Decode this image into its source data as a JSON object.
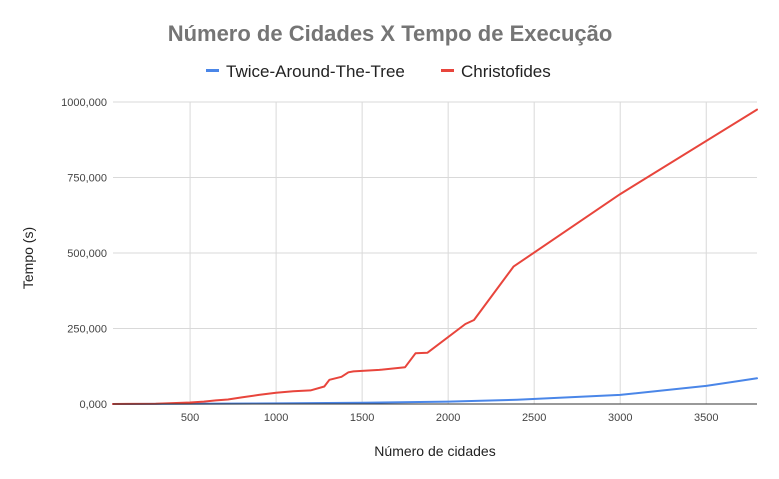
{
  "chart_data": {
    "type": "line",
    "title": "Número de Cidades X Tempo de Execução",
    "xlabel": "Número de cidades",
    "ylabel": "Tempo (s)",
    "xlim": [
      52,
      3795
    ],
    "ylim": [
      0,
      1000000
    ],
    "x_ticks": [
      500,
      1000,
      1500,
      2000,
      2500,
      3000,
      3500
    ],
    "x_tick_labels": [
      "500",
      "1000",
      "1500",
      "2000",
      "2500",
      "3000",
      "3500"
    ],
    "y_ticks": [
      0,
      250000,
      500000,
      750000,
      1000000
    ],
    "y_tick_labels": [
      "0,000",
      "250,000",
      "500,000",
      "750,000",
      "1000,000"
    ],
    "grid": true,
    "legend_position": "top",
    "series": [
      {
        "name": "Twice-Around-The-Tree",
        "color": "#4a86e8",
        "points": [
          [
            52,
            0
          ],
          [
            500,
            500
          ],
          [
            1000,
            2000
          ],
          [
            1500,
            4000
          ],
          [
            2000,
            8000
          ],
          [
            2400,
            14000
          ],
          [
            3000,
            30000
          ],
          [
            3500,
            60000
          ],
          [
            3795,
            85000
          ]
        ]
      },
      {
        "name": "Christofides",
        "color": "#e8453c",
        "points": [
          [
            52,
            0
          ],
          [
            300,
            1000
          ],
          [
            400,
            3000
          ],
          [
            500,
            5000
          ],
          [
            580,
            8000
          ],
          [
            650,
            12000
          ],
          [
            720,
            15000
          ],
          [
            800,
            22000
          ],
          [
            900,
            30000
          ],
          [
            1000,
            37000
          ],
          [
            1100,
            42000
          ],
          [
            1200,
            45000
          ],
          [
            1280,
            58000
          ],
          [
            1310,
            80000
          ],
          [
            1380,
            90000
          ],
          [
            1420,
            105000
          ],
          [
            1450,
            108000
          ],
          [
            1600,
            113000
          ],
          [
            1750,
            122000
          ],
          [
            1810,
            168000
          ],
          [
            1880,
            170000
          ],
          [
            2100,
            265000
          ],
          [
            2150,
            278000
          ],
          [
            2380,
            455000
          ],
          [
            3000,
            695000
          ],
          [
            3795,
            975000
          ]
        ]
      }
    ]
  }
}
